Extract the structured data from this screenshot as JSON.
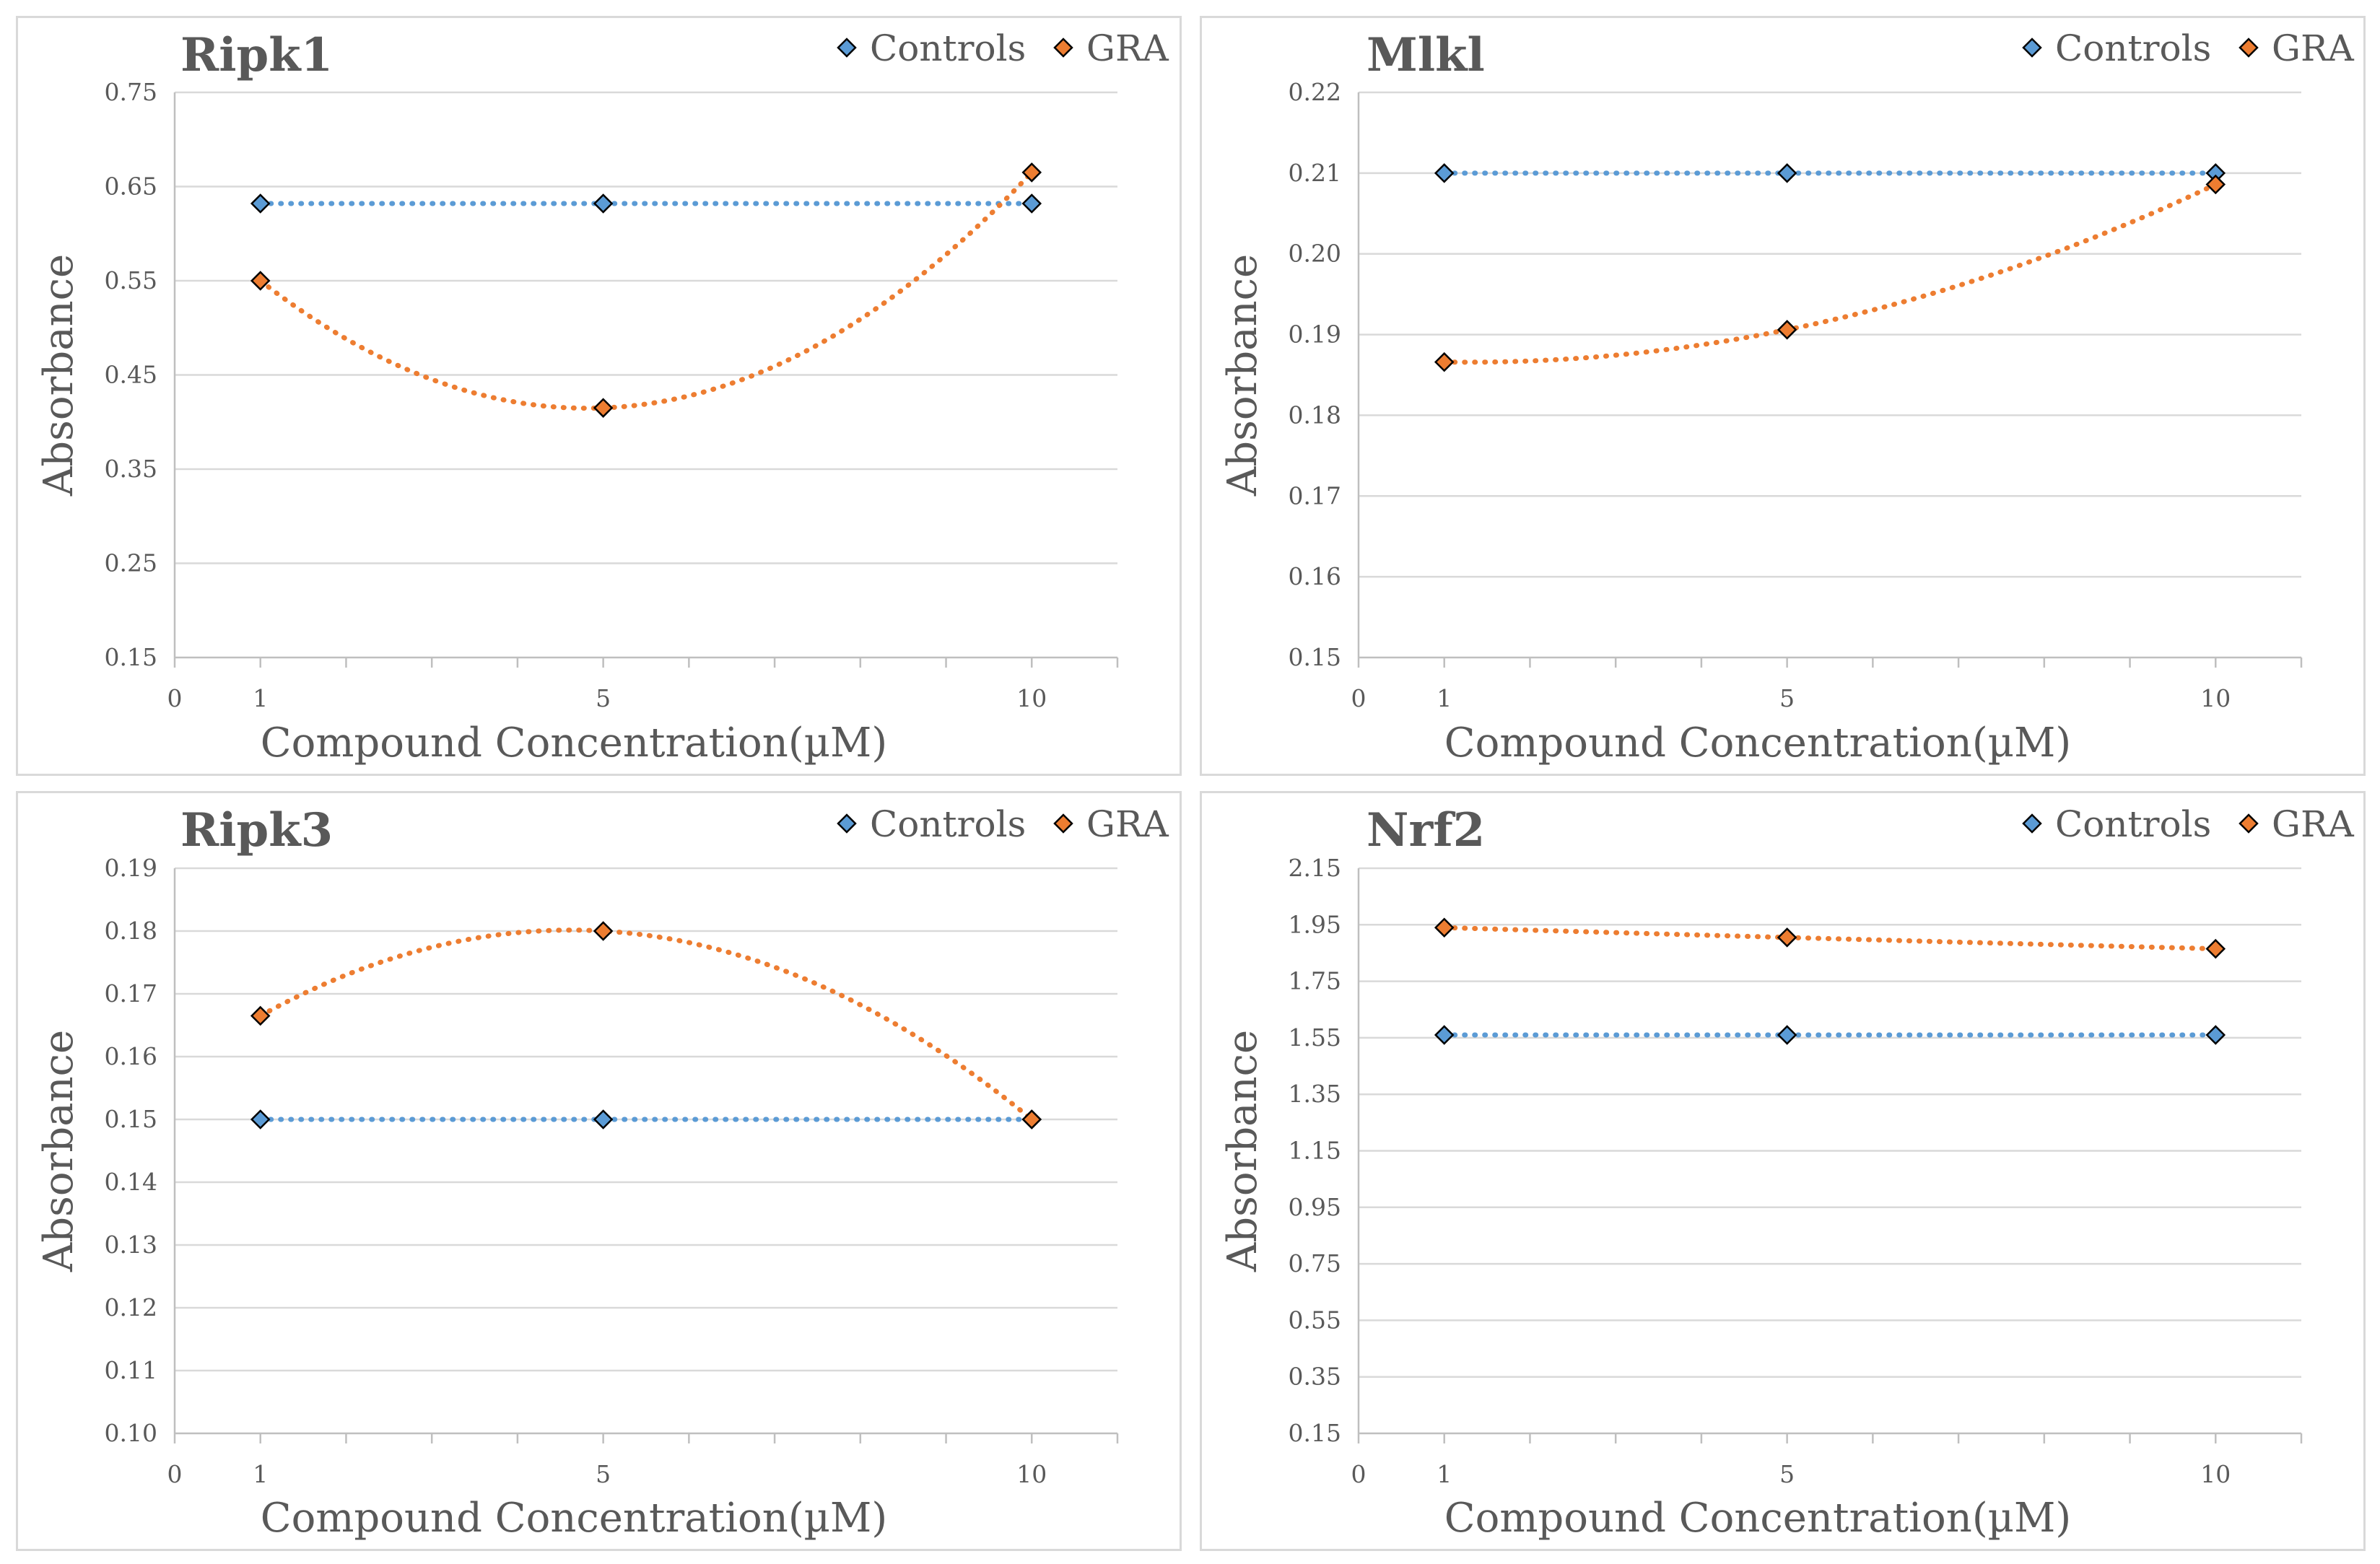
{
  "colors": {
    "controls": "#5B9BD5",
    "gra": "#ED7D31",
    "grid": "#d9d9d9",
    "text": "#595959"
  },
  "chart_data": [
    {
      "type": "line",
      "title": "Ripk1",
      "xlabel": "Compound Concentration(µM)",
      "ylabel": "Absorbance",
      "xlim": [
        0,
        11
      ],
      "x_ticks": [
        "0",
        "1",
        "5",
        "10"
      ],
      "ylim": [
        0.15,
        0.75
      ],
      "y_ticks": [
        "0.15",
        "0.25",
        "0.35",
        "0.45",
        "0.55",
        "0.65",
        "0.75"
      ],
      "grid": true,
      "legend": [
        "Controls",
        "GRA"
      ],
      "legend_position": "top-right",
      "series": [
        {
          "name": "Controls",
          "x": [
            1,
            5,
            10
          ],
          "values": [
            0.632,
            0.632,
            0.632
          ]
        },
        {
          "name": "GRA",
          "x": [
            1,
            5,
            10
          ],
          "values": [
            0.55,
            0.415,
            0.665
          ]
        }
      ]
    },
    {
      "type": "line",
      "title": "Mlkl",
      "xlabel": "Compound Concentration(µM)",
      "ylabel": "Absorbance",
      "xlim": [
        0,
        11
      ],
      "x_ticks": [
        "0",
        "1",
        "5",
        "10"
      ],
      "ylim": [
        0.15,
        0.22
      ],
      "y_ticks": [
        "0.15",
        "0.16",
        "0.17",
        "0.18",
        "0.19",
        "0.20",
        "0.21",
        "0.22"
      ],
      "grid": true,
      "legend": [
        "Controls",
        "GRA"
      ],
      "legend_position": "top-right",
      "series": [
        {
          "name": "Controls",
          "x": [
            1,
            5,
            10
          ],
          "values": [
            0.21,
            0.21,
            0.21
          ]
        },
        {
          "name": "GRA",
          "x": [
            1,
            5,
            10
          ],
          "values": [
            0.1866,
            0.1906,
            0.2086
          ]
        }
      ]
    },
    {
      "type": "line",
      "title": "Ripk3",
      "xlabel": "Compound Concentration(µM)",
      "ylabel": "Absorbance",
      "xlim": [
        0,
        11
      ],
      "x_ticks": [
        "0",
        "1",
        "5",
        "10"
      ],
      "ylim": [
        0.1,
        0.19
      ],
      "y_ticks": [
        "0.10",
        "0.11",
        "0.12",
        "0.13",
        "0.14",
        "0.15",
        "0.16",
        "0.17",
        "0.18",
        "0.19"
      ],
      "grid": true,
      "legend": [
        "Controls",
        "GRA"
      ],
      "legend_position": "top-right",
      "series": [
        {
          "name": "Controls",
          "x": [
            1,
            5,
            10
          ],
          "values": [
            0.15,
            0.15,
            0.15
          ]
        },
        {
          "name": "GRA",
          "x": [
            1,
            5,
            10
          ],
          "values": [
            0.1665,
            0.18,
            0.15
          ]
        }
      ]
    },
    {
      "type": "line",
      "title": "Nrf2",
      "xlabel": "Compound Concentration(µM)",
      "ylabel": "Absorbance",
      "xlim": [
        0,
        11
      ],
      "x_ticks": [
        "0",
        "1",
        "5",
        "10"
      ],
      "ylim": [
        0.15,
        2.15
      ],
      "y_ticks": [
        "0.15",
        "0.35",
        "0.55",
        "0.75",
        "0.95",
        "1.15",
        "1.35",
        "1.55",
        "1.75",
        "1.95",
        "2.15"
      ],
      "grid": true,
      "legend": [
        "Controls",
        "GRA"
      ],
      "legend_position": "top-right",
      "series": [
        {
          "name": "Controls",
          "x": [
            1,
            5,
            10
          ],
          "values": [
            1.56,
            1.56,
            1.56
          ]
        },
        {
          "name": "GRA",
          "x": [
            1,
            5,
            10
          ],
          "values": [
            1.94,
            1.905,
            1.865
          ]
        }
      ]
    }
  ]
}
